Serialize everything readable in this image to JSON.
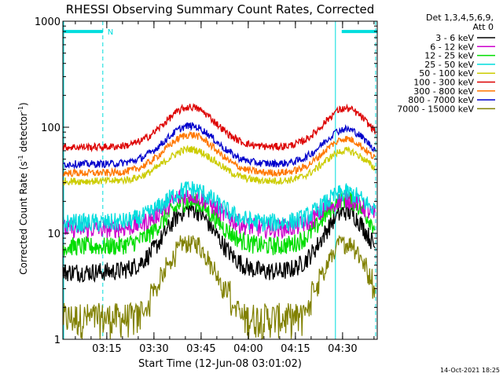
{
  "chart_data": {
    "type": "line",
    "title": "RHESSI Observing Summary Count Rates, Corrected",
    "xlabel": "Start Time (12-Jun-08 03:01:02)",
    "ylabel": "Corrected Count Rate (s",
    "ylabel_sup1": "-1",
    "ylabel_mid": " detector",
    "ylabel_sup2": "-1",
    "ylabel_end": ")",
    "yscale": "log",
    "ylim": [
      1,
      1000
    ],
    "xlim_minutes": [
      0,
      100
    ],
    "x_ticks": [
      {
        "label": "03:15",
        "minutes": 13.97
      },
      {
        "label": "03:30",
        "minutes": 28.97
      },
      {
        "label": "03:45",
        "minutes": 43.97
      },
      {
        "label": "04:00",
        "minutes": 58.97
      },
      {
        "label": "04:15",
        "minutes": 73.97
      },
      {
        "label": "04:30",
        "minutes": 88.97
      }
    ],
    "y_ticks": [
      {
        "label": "1",
        "value": 1
      },
      {
        "label": "10",
        "value": 10
      },
      {
        "label": "100",
        "value": 100
      },
      {
        "label": "1000",
        "value": 1000
      }
    ],
    "legend_header": [
      "Det 1,3,4,5,6,9,",
      "Att 0"
    ],
    "series": [
      {
        "name": "3 - 6 keV",
        "color": "#000000",
        "base": 4.3,
        "peak1": 17,
        "peak2": 16
      },
      {
        "name": "6 - 12 keV",
        "color": "#cc00cc",
        "base": 11.0,
        "peak1": 23,
        "peak2": 21
      },
      {
        "name": "12 - 25 keV",
        "color": "#00dd00",
        "base": 7.5,
        "peak1": 20,
        "peak2": 21
      },
      {
        "name": "25 - 50 keV",
        "color": "#00dddd",
        "base": 12.5,
        "peak1": 26,
        "peak2": 24
      },
      {
        "name": "50 - 100 keV",
        "color": "#cccc00",
        "base": 31,
        "peak1": 62,
        "peak2": 60
      },
      {
        "name": "100 - 300 keV",
        "color": "#dd0000",
        "base": 65,
        "peak1": 155,
        "peak2": 150
      },
      {
        "name": "300 - 800 keV",
        "color": "#ff7700",
        "base": 37,
        "peak1": 85,
        "peak2": 78
      },
      {
        "name": "800 - 7000 keV",
        "color": "#0000cc",
        "base": 45,
        "peak1": 103,
        "peak2": 96
      },
      {
        "name": "7000 - 15000 keV",
        "color": "#808000",
        "base": 1.5,
        "peak1": 8.5,
        "peak2": 8.5
      }
    ],
    "annotations": {
      "flag_label": "N",
      "flag_bars_minutes": [
        [
          0,
          12.7
        ],
        [
          88.7,
          100
        ]
      ],
      "flag_value": 800,
      "solid_vlines_minutes": [
        0,
        86.7
      ],
      "dashed_vlines_minutes": [
        12.7,
        99.5
      ],
      "line_color": "#00dddd"
    },
    "footer_date": "14-Oct-2021 18:25"
  }
}
